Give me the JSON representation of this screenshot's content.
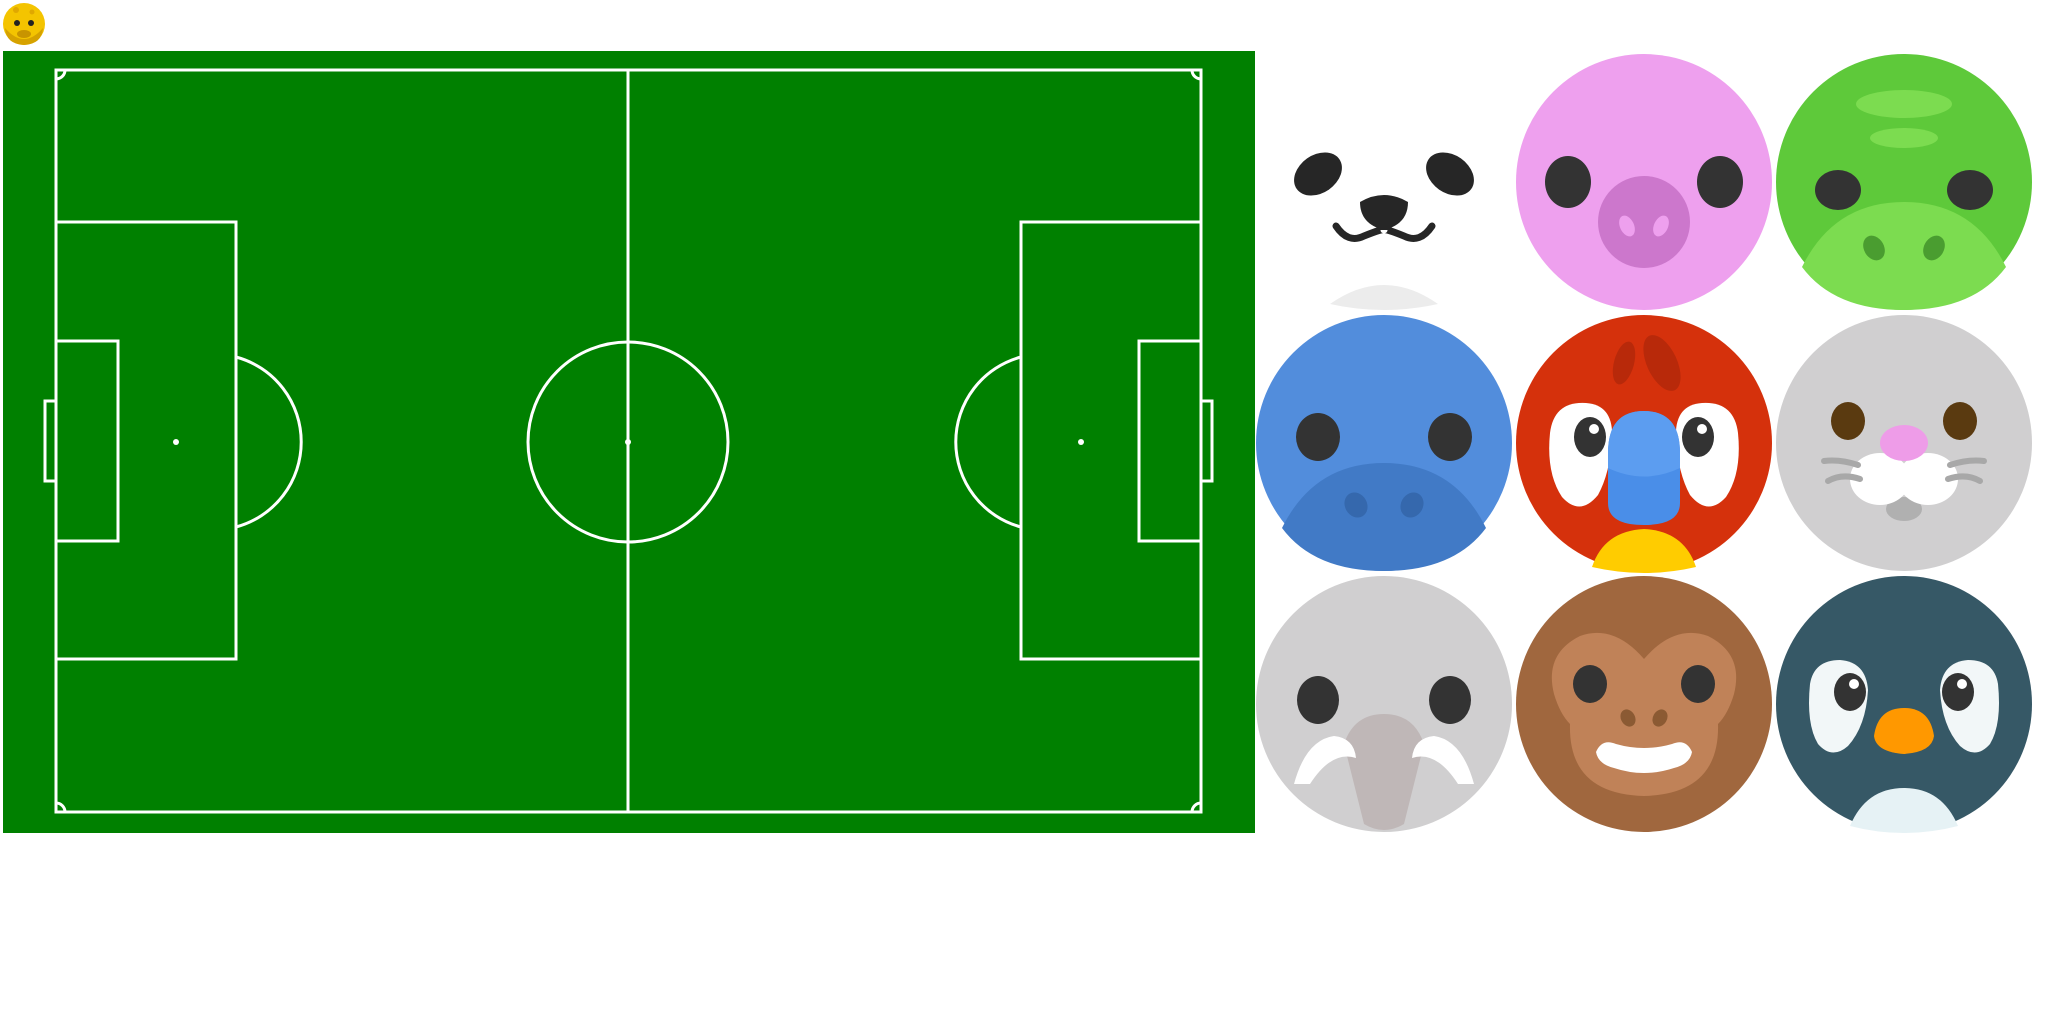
{
  "game": {
    "player_token": {
      "animal": "giraffe",
      "icon": "giraffe-face-icon",
      "color": "#f4c400"
    },
    "pitch": {
      "surface_color": "#008000",
      "line_color": "#ffffff"
    },
    "animal_picker": [
      {
        "animal": "panda",
        "icon": "panda-face-icon",
        "color": "#ffffff"
      },
      {
        "animal": "pig",
        "icon": "pig-face-icon",
        "color": "#eea0ee"
      },
      {
        "animal": "crocodile",
        "icon": "crocodile-face-icon",
        "color": "#5ec93a"
      },
      {
        "animal": "hippo",
        "icon": "hippo-face-icon",
        "color": "#528ddc"
      },
      {
        "animal": "parrot",
        "icon": "parrot-face-icon",
        "color": "#d5310c"
      },
      {
        "animal": "rabbit",
        "icon": "rabbit-face-icon",
        "color": "#d0cfd0"
      },
      {
        "animal": "walrus",
        "icon": "walrus-face-icon",
        "color": "#d0cfd0"
      },
      {
        "animal": "monkey",
        "icon": "monkey-face-icon",
        "color": "#a0673e"
      },
      {
        "animal": "penguin",
        "icon": "penguin-face-icon",
        "color": "#365866"
      }
    ]
  }
}
